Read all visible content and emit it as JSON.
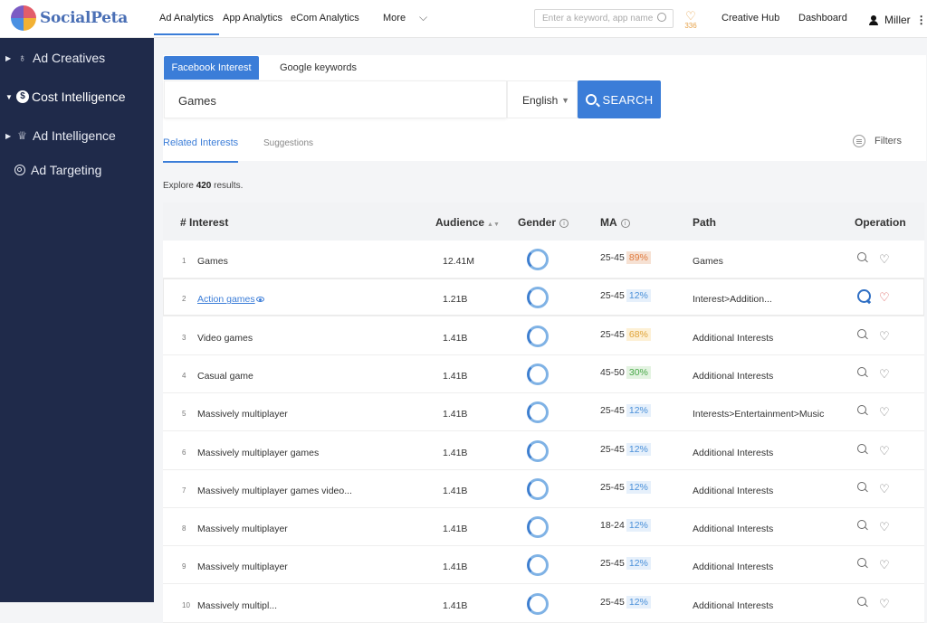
{
  "app": {
    "logo_text": "SocialPeta"
  },
  "nav": {
    "items": [
      "Ad Analytics",
      "App Analytics",
      "eCom Analytics",
      "More"
    ],
    "search_placeholder": "Enter a keyword, app name",
    "favorites_count": "336",
    "creative_hub": "Creative Hub",
    "dashboard": "Dashboard",
    "user": "Miller"
  },
  "sidebar": {
    "items": [
      "Ad Creatives",
      "Cost Intelligence",
      "Ad Intelligence",
      "Ad Targeting"
    ]
  },
  "search": {
    "tabs": [
      "Facebook Interest",
      "Google keywords"
    ],
    "query": "Games",
    "language": "English",
    "button": "SEARCH"
  },
  "results": {
    "subtabs": [
      "Related Interests",
      "Suggestions"
    ],
    "filters_label": "Filters",
    "explore_prefix": "Explore",
    "count": "420",
    "explore_suffix": "results."
  },
  "table": {
    "headers": [
      "# Interest",
      "Audience",
      "Gender",
      "MA",
      "Path",
      "Operation"
    ],
    "rows": [
      {
        "idx": "1",
        "interest": "Games",
        "audience": "12.41M",
        "age": "25-45",
        "pct": "89%",
        "path": "Games"
      },
      {
        "idx": "2",
        "interest": "Action games",
        "audience": "1.21B",
        "age": "25-45",
        "pct": "12%",
        "path": "Interest>Addition..."
      },
      {
        "idx": "3",
        "interest": "Video games",
        "audience": "1.41B",
        "age": "25-45",
        "pct": "68%",
        "path": "Additional Interests"
      },
      {
        "idx": "4",
        "interest": "Casual game",
        "audience": "1.41B",
        "age": "45-50",
        "pct": "30%",
        "path": "Additional Interests"
      },
      {
        "idx": "5",
        "interest": "Massively multiplayer",
        "audience": "1.41B",
        "age": "25-45",
        "pct": "12%",
        "path": "Interests>Entertainment>Music"
      },
      {
        "idx": "6",
        "interest": "Massively multiplayer games",
        "audience": "1.41B",
        "age": "25-45",
        "pct": "12%",
        "path": "Additional Interests"
      },
      {
        "idx": "7",
        "interest": "Massively multiplayer games video...",
        "audience": "1.41B",
        "age": "25-45",
        "pct": "12%",
        "path": "Additional Interests"
      },
      {
        "idx": "8",
        "interest": "Massively multiplayer",
        "audience": "1.41B",
        "age": "18-24",
        "pct": "12%",
        "path": "Additional Interests"
      },
      {
        "idx": "9",
        "interest": "Massively multiplayer",
        "audience": "1.41B",
        "age": "25-45",
        "pct": "12%",
        "path": "Additional Interests"
      },
      {
        "idx": "10",
        "interest": "Massively multipl...",
        "audience": "1.41B",
        "age": "25-45",
        "pct": "12%",
        "path": "Additional Interests"
      }
    ]
  },
  "colors": {
    "accent": "#3b7dd8",
    "sidebar_bg": "#1f2a4a",
    "pct_high": "#f6e1d3",
    "pct_mid": "#fdf0d5",
    "pct_low": "#e3f3e1",
    "pct_blue": "#e6f0fb"
  }
}
